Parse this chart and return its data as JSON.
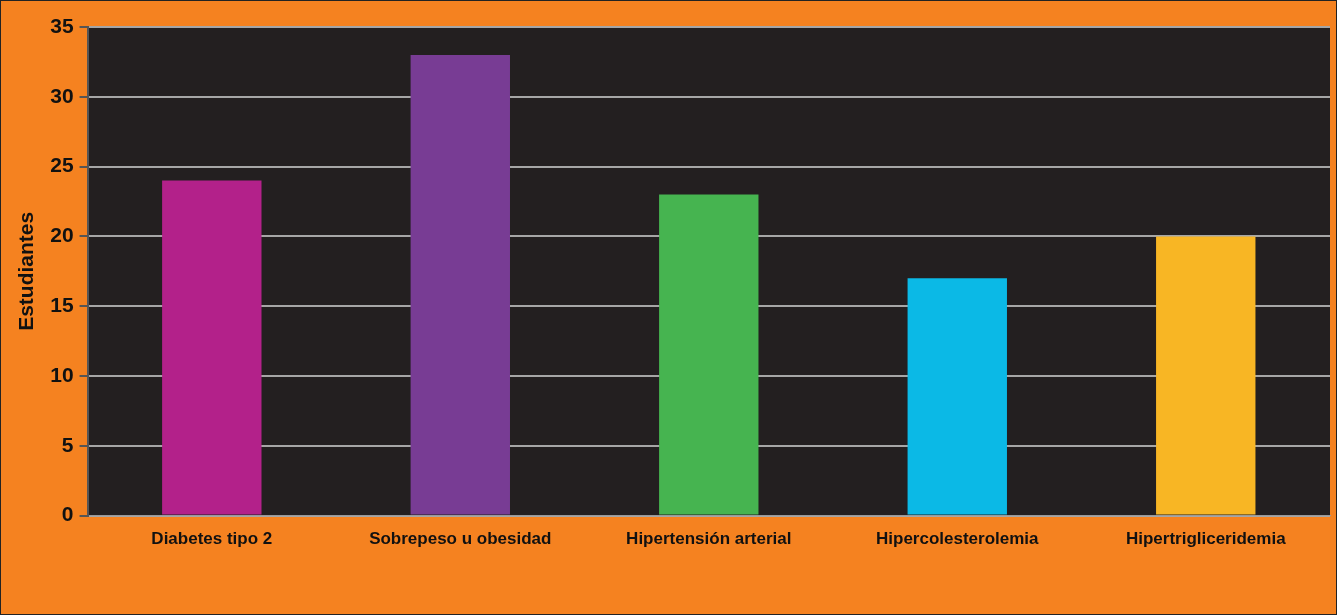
{
  "chart_data": {
    "type": "bar",
    "ylabel": "Estudiantes",
    "categories": [
      "Diabetes tipo 2",
      "Sobrepeso u obesidad",
      "Hipertensión arterial",
      "Hipercolesterolemia",
      "Hipertrigliceridemia"
    ],
    "values": [
      24,
      33,
      23,
      17,
      20
    ],
    "colors": [
      "#b3218a",
      "#783c94",
      "#46b450",
      "#0bb9e6",
      "#f8b624"
    ],
    "ylim": [
      0,
      35
    ],
    "yticks": [
      0,
      5,
      10,
      15,
      20,
      25,
      30,
      35
    ],
    "grid": "y",
    "legend": false
  }
}
